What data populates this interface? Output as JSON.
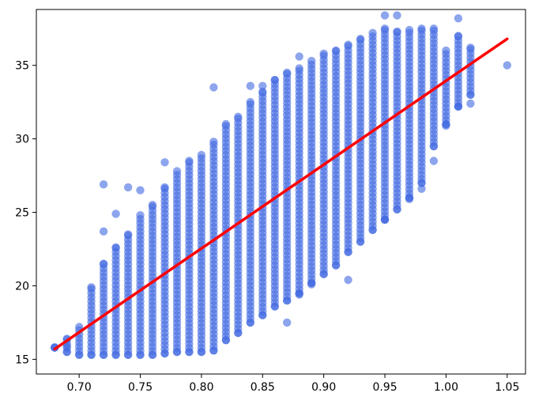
{
  "chart_data": {
    "type": "scatter",
    "title": "",
    "xlabel": "",
    "ylabel": "",
    "xlim": [
      0.665,
      1.065
    ],
    "ylim": [
      14,
      38.8
    ],
    "x_ticks": [
      0.7,
      0.75,
      0.8,
      0.85,
      0.9,
      0.95,
      1.0,
      1.05
    ],
    "x_tick_labels": [
      "0.70",
      "0.75",
      "0.80",
      "0.85",
      "0.90",
      "0.95",
      "1.00",
      "1.05"
    ],
    "y_ticks": [
      15,
      20,
      25,
      30,
      35
    ],
    "y_tick_labels": [
      "15",
      "20",
      "25",
      "30",
      "35"
    ],
    "grid": false,
    "legend": "none",
    "scatter_color": "#4169e1",
    "line_color": "#ff0000",
    "columns": [
      {
        "x": 0.68,
        "low": 15.8,
        "high": 15.8
      },
      {
        "x": 0.69,
        "low": 15.5,
        "high": 16.4
      },
      {
        "x": 0.7,
        "low": 15.3,
        "high": 17.2
      },
      {
        "x": 0.71,
        "low": 15.3,
        "high": 19.9
      },
      {
        "x": 0.72,
        "low": 15.3,
        "high": 21.5
      },
      {
        "x": 0.73,
        "low": 15.3,
        "high": 22.6
      },
      {
        "x": 0.74,
        "low": 15.3,
        "high": 23.5
      },
      {
        "x": 0.75,
        "low": 15.3,
        "high": 24.8
      },
      {
        "x": 0.76,
        "low": 15.3,
        "high": 25.5
      },
      {
        "x": 0.77,
        "low": 15.4,
        "high": 26.7
      },
      {
        "x": 0.78,
        "low": 15.5,
        "high": 27.8
      },
      {
        "x": 0.79,
        "low": 15.5,
        "high": 28.5
      },
      {
        "x": 0.8,
        "low": 15.5,
        "high": 28.9
      },
      {
        "x": 0.81,
        "low": 15.6,
        "high": 29.8
      },
      {
        "x": 0.82,
        "low": 16.3,
        "high": 31.0
      },
      {
        "x": 0.83,
        "low": 16.8,
        "high": 31.5
      },
      {
        "x": 0.84,
        "low": 17.5,
        "high": 32.5
      },
      {
        "x": 0.85,
        "low": 18.0,
        "high": 33.2
      },
      {
        "x": 0.86,
        "low": 18.6,
        "high": 34.0
      },
      {
        "x": 0.87,
        "low": 19.0,
        "high": 34.5
      },
      {
        "x": 0.88,
        "low": 19.5,
        "high": 34.8
      },
      {
        "x": 0.89,
        "low": 20.2,
        "high": 35.3
      },
      {
        "x": 0.9,
        "low": 20.8,
        "high": 35.8
      },
      {
        "x": 0.91,
        "low": 21.4,
        "high": 36.0
      },
      {
        "x": 0.92,
        "low": 22.3,
        "high": 36.4
      },
      {
        "x": 0.93,
        "low": 23.0,
        "high": 36.8
      },
      {
        "x": 0.94,
        "low": 23.8,
        "high": 37.2
      },
      {
        "x": 0.95,
        "low": 24.5,
        "high": 37.5
      },
      {
        "x": 0.96,
        "low": 25.2,
        "high": 37.3
      },
      {
        "x": 0.97,
        "low": 26.0,
        "high": 37.4
      },
      {
        "x": 0.98,
        "low": 27.0,
        "high": 37.5
      },
      {
        "x": 0.99,
        "low": 29.5,
        "high": 37.5
      },
      {
        "x": 1.0,
        "low": 31.0,
        "high": 36.0
      },
      {
        "x": 1.01,
        "low": 32.2,
        "high": 37.0
      },
      {
        "x": 1.02,
        "low": 33.0,
        "high": 36.2
      }
    ],
    "outliers": [
      {
        "x": 0.72,
        "y": 26.9
      },
      {
        "x": 0.72,
        "y": 23.7
      },
      {
        "x": 0.73,
        "y": 24.9
      },
      {
        "x": 0.74,
        "y": 26.7
      },
      {
        "x": 0.75,
        "y": 26.5
      },
      {
        "x": 0.77,
        "y": 28.4
      },
      {
        "x": 0.81,
        "y": 33.5
      },
      {
        "x": 0.84,
        "y": 33.6
      },
      {
        "x": 0.85,
        "y": 33.6
      },
      {
        "x": 0.87,
        "y": 17.5
      },
      {
        "x": 0.88,
        "y": 19.4
      },
      {
        "x": 0.88,
        "y": 35.6
      },
      {
        "x": 0.89,
        "y": 20.1
      },
      {
        "x": 0.92,
        "y": 20.4
      },
      {
        "x": 0.95,
        "y": 24.5
      },
      {
        "x": 0.95,
        "y": 38.4
      },
      {
        "x": 0.96,
        "y": 38.4
      },
      {
        "x": 0.97,
        "y": 25.9
      },
      {
        "x": 0.98,
        "y": 26.6
      },
      {
        "x": 0.99,
        "y": 28.5
      },
      {
        "x": 1.0,
        "y": 30.9
      },
      {
        "x": 1.01,
        "y": 38.2
      },
      {
        "x": 1.01,
        "y": 32.2
      },
      {
        "x": 1.02,
        "y": 32.4
      },
      {
        "x": 1.05,
        "y": 35.0
      },
      {
        "x": 0.69,
        "y": 15.9
      }
    ],
    "fit_line": {
      "x": [
        0.68,
        1.05
      ],
      "y": [
        15.7,
        36.8
      ]
    }
  }
}
